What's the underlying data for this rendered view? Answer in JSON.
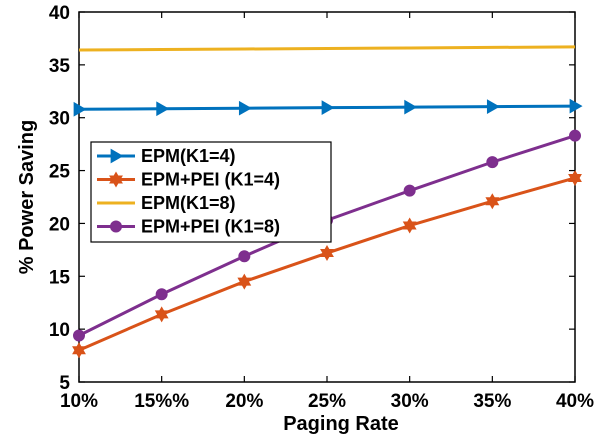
{
  "chart_data": {
    "type": "line",
    "title": "",
    "xlabel": "Paging Rate",
    "ylabel": "% Power Saving",
    "x_tick_labels": [
      "10%",
      "15%%",
      "20%",
      "25%",
      "30%",
      "35%",
      "40%"
    ],
    "x": [
      10,
      15,
      20,
      25,
      30,
      35,
      40
    ],
    "xlim": [
      10,
      40
    ],
    "ylim": [
      5,
      40
    ],
    "y_ticks": [
      5,
      10,
      15,
      20,
      25,
      30,
      35,
      40
    ],
    "grid": false,
    "legend_position": "left, middle",
    "series": [
      {
        "name": "EPM(K1=4)",
        "color": "#0072BD",
        "marker": "triangle-right",
        "values": [
          30.8,
          30.85,
          30.9,
          30.95,
          31.0,
          31.05,
          31.1
        ]
      },
      {
        "name": "EPM+PEI (K1=4)",
        "color": "#D95319",
        "marker": "hexagram",
        "values": [
          8.0,
          11.4,
          14.5,
          17.2,
          19.8,
          22.1,
          24.3
        ]
      },
      {
        "name": "EPM(K1=8)",
        "color": "#EDB120",
        "marker": "none",
        "values": [
          36.4,
          36.45,
          36.5,
          36.55,
          36.6,
          36.65,
          36.7
        ]
      },
      {
        "name": "EPM+PEI (K1=8)",
        "color": "#7E2F8E",
        "marker": "circle",
        "values": [
          9.4,
          13.3,
          16.9,
          20.3,
          23.1,
          25.8,
          28.3
        ]
      }
    ]
  }
}
